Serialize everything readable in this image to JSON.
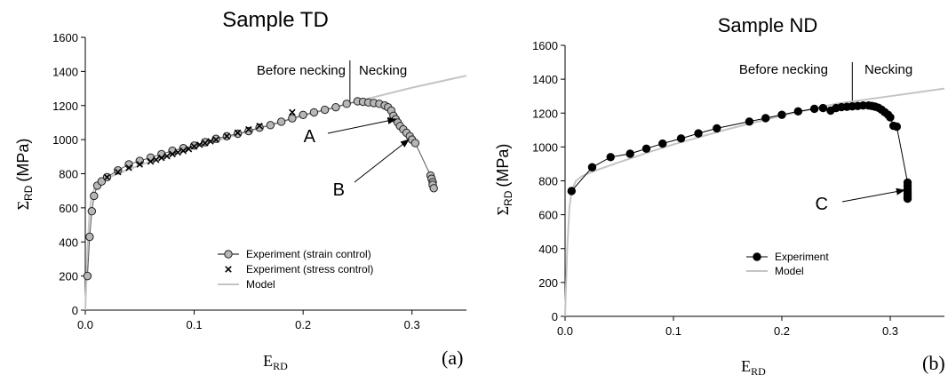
{
  "chart_data": [
    {
      "type": "scatter",
      "title": "Sample TD",
      "panel_label": "(a)",
      "xlabel": {
        "main": "E",
        "sub": "RD"
      },
      "ylabel": {
        "main": "Σ",
        "sub": "RD",
        "unit": "(MPa)"
      },
      "xlim": [
        0,
        0.35
      ],
      "ylim": [
        0,
        1600
      ],
      "xticks": [
        {
          "value": 0,
          "label": "0.0"
        },
        {
          "value": 0.1,
          "label": "0.1"
        },
        {
          "value": 0.2,
          "label": "0.2"
        },
        {
          "value": 0.3,
          "label": "0.3"
        }
      ],
      "yticks": [
        0,
        200,
        400,
        600,
        800,
        1000,
        1200,
        1400,
        1600
      ],
      "region_divider_x": 0.243,
      "region_labels": {
        "before": "Before necking",
        "after": "Necking"
      },
      "legend": {
        "position": "bottom-right"
      },
      "series": [
        {
          "name": "Experiment (strain control)",
          "marker": "circle-gray",
          "x": [
            0.002,
            0.004,
            0.006,
            0.008,
            0.011,
            0.015,
            0.02,
            0.03,
            0.04,
            0.05,
            0.06,
            0.07,
            0.08,
            0.09,
            0.1,
            0.11,
            0.12,
            0.13,
            0.14,
            0.15,
            0.16,
            0.17,
            0.18,
            0.19,
            0.2,
            0.21,
            0.22,
            0.23,
            0.24,
            0.25,
            0.255,
            0.26,
            0.265,
            0.27,
            0.275,
            0.278,
            0.281,
            0.283,
            0.285,
            0.287,
            0.289,
            0.292,
            0.295,
            0.298,
            0.3,
            0.303,
            0.317,
            0.318,
            0.319,
            0.319,
            0.32
          ],
          "y": [
            200,
            430,
            580,
            670,
            730,
            755,
            780,
            820,
            855,
            875,
            895,
            915,
            935,
            950,
            965,
            985,
            1005,
            1020,
            1035,
            1050,
            1070,
            1085,
            1105,
            1125,
            1145,
            1160,
            1175,
            1190,
            1210,
            1225,
            1222,
            1218,
            1215,
            1210,
            1200,
            1190,
            1170,
            1140,
            1120,
            1100,
            1080,
            1060,
            1040,
            1020,
            1000,
            980,
            790,
            770,
            750,
            735,
            715
          ]
        },
        {
          "name": "Experiment (stress control)",
          "marker": "x",
          "x": [
            0.02,
            0.03,
            0.04,
            0.05,
            0.06,
            0.065,
            0.07,
            0.075,
            0.08,
            0.085,
            0.09,
            0.095,
            0.1,
            0.105,
            0.11,
            0.115,
            0.12,
            0.13,
            0.14,
            0.15,
            0.16,
            0.19
          ],
          "y": [
            780,
            810,
            835,
            855,
            872,
            882,
            893,
            903,
            915,
            925,
            935,
            945,
            960,
            970,
            980,
            990,
            1000,
            1020,
            1040,
            1060,
            1080,
            1160
          ]
        },
        {
          "name": "Model",
          "line": "gray",
          "x": [
            0,
            0.002,
            0.004,
            0.006,
            0.01,
            0.015,
            0.02,
            0.03,
            0.05,
            0.08,
            0.1,
            0.15,
            0.2,
            0.25,
            0.3,
            0.35
          ],
          "y": [
            0,
            350,
            580,
            680,
            735,
            760,
            775,
            800,
            850,
            915,
            955,
            1050,
            1140,
            1225,
            1305,
            1375
          ]
        }
      ],
      "annotations": [
        {
          "label": "A",
          "arrow_to": [
            0.285,
            1120
          ]
        },
        {
          "label": "B",
          "arrow_to": [
            0.297,
            1000
          ]
        }
      ]
    },
    {
      "type": "scatter",
      "title": "Sample ND",
      "panel_label": "(b)",
      "xlabel": {
        "main": "E",
        "sub": "RD"
      },
      "ylabel": {
        "main": "Σ",
        "sub": "RD",
        "unit": "(MPa)"
      },
      "xlim": [
        0,
        0.35
      ],
      "ylim": [
        0,
        1600
      ],
      "xticks": [
        {
          "value": 0,
          "label": "0.0"
        },
        {
          "value": 0.1,
          "label": "0.1"
        },
        {
          "value": 0.2,
          "label": "0.2"
        },
        {
          "value": 0.3,
          "label": "0.3"
        }
      ],
      "yticks": [
        0,
        200,
        400,
        600,
        800,
        1000,
        1200,
        1400,
        1600
      ],
      "region_divider_x": 0.265,
      "region_labels": {
        "before": "Before necking",
        "after": "Necking"
      },
      "legend": {
        "position": "bottom-center"
      },
      "series": [
        {
          "name": "Experiment",
          "marker": "circle-black",
          "connected": true,
          "x": [
            0.006,
            0.025,
            0.042,
            0.06,
            0.075,
            0.09,
            0.107,
            0.123,
            0.14,
            0.17,
            0.185,
            0.2,
            0.215,
            0.23,
            0.238,
            0.245,
            0.25,
            0.255,
            0.26,
            0.265,
            0.27,
            0.275,
            0.28,
            0.283,
            0.286,
            0.289,
            0.292,
            0.295,
            0.298,
            0.3,
            0.303,
            0.306,
            0.316,
            0.316,
            0.316,
            0.316,
            0.316,
            0.316,
            0.316
          ],
          "y": [
            740,
            880,
            940,
            960,
            990,
            1020,
            1050,
            1080,
            1110,
            1150,
            1170,
            1190,
            1210,
            1225,
            1230,
            1215,
            1230,
            1235,
            1237,
            1240,
            1242,
            1245,
            1245,
            1242,
            1238,
            1232,
            1220,
            1205,
            1190,
            1175,
            1125,
            1120,
            790,
            770,
            750,
            735,
            720,
            705,
            695
          ]
        },
        {
          "name": "Model",
          "line": "gray",
          "x": [
            0,
            0.002,
            0.004,
            0.006,
            0.01,
            0.015,
            0.02,
            0.03,
            0.05,
            0.08,
            0.1,
            0.15,
            0.2,
            0.25,
            0.3,
            0.35
          ],
          "y": [
            0,
            400,
            640,
            740,
            800,
            825,
            840,
            865,
            910,
            975,
            1015,
            1105,
            1185,
            1255,
            1300,
            1345
          ]
        }
      ],
      "annotations": [
        {
          "label": "C",
          "arrow_to": [
            0.313,
            745
          ]
        }
      ]
    }
  ]
}
